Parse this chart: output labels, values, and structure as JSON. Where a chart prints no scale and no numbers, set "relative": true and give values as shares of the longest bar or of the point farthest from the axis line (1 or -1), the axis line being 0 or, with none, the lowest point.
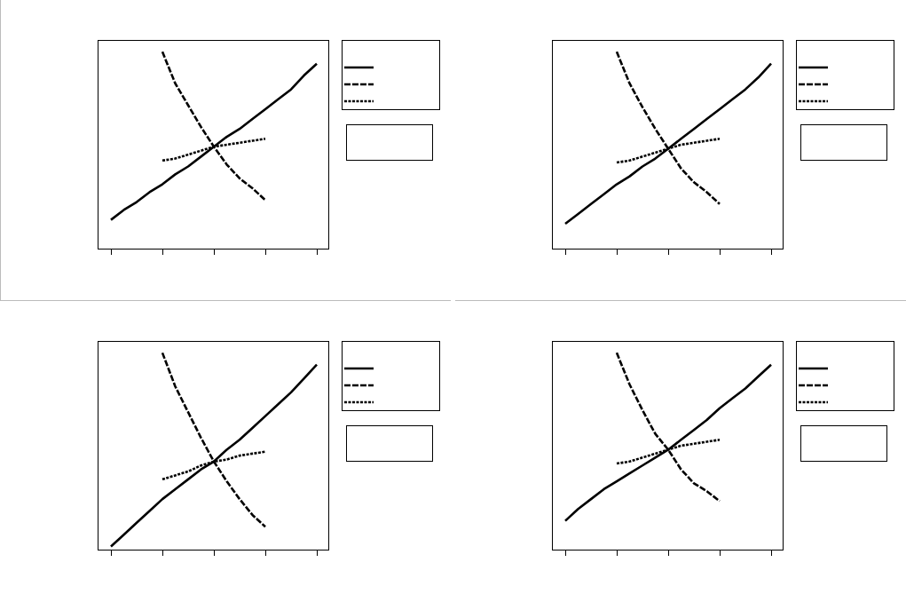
{
  "chart_data": [
    {
      "type": "line",
      "relative": true,
      "categories": [
        null,
        null,
        null,
        null,
        null,
        null,
        null,
        null,
        null,
        null,
        null,
        null,
        null,
        null,
        null,
        null,
        null
      ],
      "series": [
        {
          "color": "#000000",
          "line_style": "solid",
          "values": [
            0.15,
            0.2,
            0.24,
            0.29,
            0.33,
            0.38,
            0.42,
            0.47,
            0.52,
            0.57,
            0.61,
            0.66,
            0.71,
            0.76,
            0.81,
            0.88,
            0.94
          ]
        },
        {
          "color": "#000000",
          "line_style": "dashed",
          "values": [
            null,
            null,
            null,
            null,
            1,
            0.84,
            0.73,
            0.62,
            0.52,
            0.43,
            0.36,
            0.31,
            0.25,
            null,
            null,
            null,
            null
          ]
        },
        {
          "color": "#000000",
          "line_style": "dotted",
          "values": [
            null,
            null,
            null,
            null,
            0.45,
            0.46,
            0.48,
            0.5,
            0.52,
            0.53,
            0.54,
            0.55,
            0.56,
            null,
            null,
            null,
            null
          ]
        }
      ]
    },
    {
      "type": "line",
      "relative": true,
      "categories": [
        null,
        null,
        null,
        null,
        null,
        null,
        null,
        null,
        null,
        null,
        null,
        null,
        null,
        null,
        null,
        null,
        null
      ],
      "series": [
        {
          "color": "#000000",
          "line_style": "solid",
          "values": [
            0.13,
            0.18,
            0.23,
            0.28,
            0.33,
            0.37,
            0.42,
            0.46,
            0.51,
            0.56,
            0.61,
            0.66,
            0.71,
            0.76,
            0.81,
            0.87,
            0.94
          ]
        },
        {
          "color": "#000000",
          "line_style": "dashed",
          "values": [
            null,
            null,
            null,
            null,
            1,
            0.84,
            0.72,
            0.61,
            0.51,
            0.41,
            0.34,
            0.29,
            0.23,
            null,
            null,
            null,
            null
          ]
        },
        {
          "color": "#000000",
          "line_style": "dotted",
          "values": [
            null,
            null,
            null,
            null,
            0.44,
            0.45,
            0.47,
            0.49,
            0.51,
            0.53,
            0.54,
            0.55,
            0.56,
            null,
            null,
            null,
            null
          ]
        }
      ]
    },
    {
      "type": "line",
      "relative": true,
      "categories": [
        null,
        null,
        null,
        null,
        null,
        null,
        null,
        null,
        null,
        null,
        null,
        null,
        null,
        null,
        null,
        null,
        null
      ],
      "series": [
        {
          "color": "#000000",
          "line_style": "solid",
          "values": [
            0.02,
            0.08,
            0.14,
            0.2,
            0.26,
            0.31,
            0.36,
            0.41,
            0.45,
            0.51,
            0.56,
            0.62,
            0.68,
            0.74,
            0.8,
            0.87,
            0.94
          ]
        },
        {
          "color": "#000000",
          "line_style": "dashed",
          "values": [
            null,
            null,
            null,
            null,
            1,
            0.83,
            0.7,
            0.57,
            0.45,
            0.35,
            0.26,
            0.18,
            0.12,
            null,
            null,
            null,
            null
          ]
        },
        {
          "color": "#000000",
          "line_style": "dotted",
          "values": [
            null,
            null,
            null,
            null,
            0.36,
            0.38,
            0.4,
            0.43,
            0.45,
            0.46,
            0.48,
            0.49,
            0.5,
            null,
            null,
            null,
            null
          ]
        }
      ]
    },
    {
      "type": "line",
      "relative": true,
      "categories": [
        null,
        null,
        null,
        null,
        null,
        null,
        null,
        null,
        null,
        null,
        null,
        null,
        null,
        null,
        null,
        null,
        null
      ],
      "series": [
        {
          "color": "#000000",
          "line_style": "solid",
          "values": [
            0.15,
            0.21,
            0.26,
            0.31,
            0.35,
            0.39,
            0.43,
            0.47,
            0.51,
            0.56,
            0.61,
            0.66,
            0.72,
            0.77,
            0.82,
            0.88,
            0.94
          ]
        },
        {
          "color": "#000000",
          "line_style": "dashed",
          "values": [
            null,
            null,
            null,
            null,
            1,
            0.84,
            0.71,
            0.59,
            0.51,
            0.41,
            0.34,
            0.3,
            0.25,
            null,
            null,
            null,
            null
          ]
        },
        {
          "color": "#000000",
          "line_style": "dotted",
          "values": [
            null,
            null,
            null,
            null,
            0.44,
            0.45,
            0.47,
            0.49,
            0.51,
            0.53,
            0.54,
            0.55,
            0.56,
            null,
            null,
            null,
            null
          ]
        }
      ]
    }
  ]
}
